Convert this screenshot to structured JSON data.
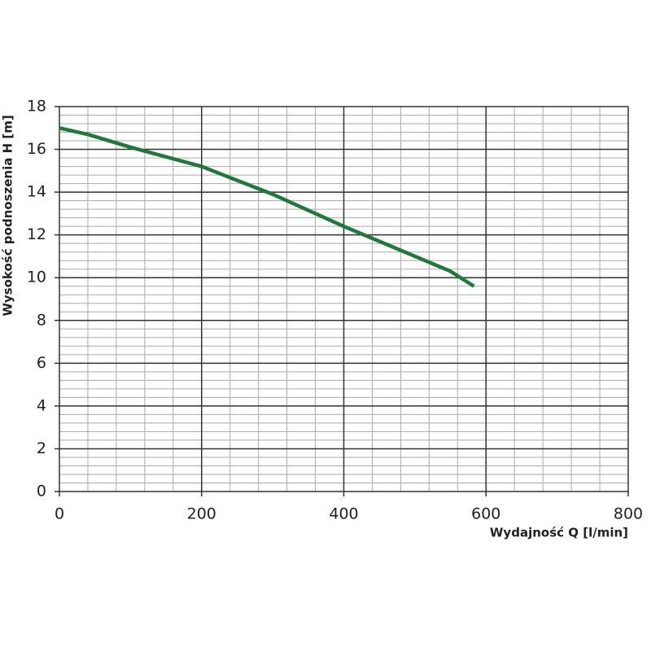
{
  "chart_data": {
    "type": "line",
    "x_label": "Wydajność Q [l/min]",
    "y_label": "Wysokość podnoszenia H [m]",
    "xlim": [
      0,
      800
    ],
    "xticks": [
      0,
      200,
      400,
      600,
      800
    ],
    "ylim": [
      0,
      18
    ],
    "yticks": [
      0,
      2,
      4,
      6,
      8,
      10,
      12,
      14,
      16,
      18
    ],
    "grid": true,
    "minor_grid": {
      "x": 40,
      "y": 0.4
    },
    "x": [
      0,
      40,
      100,
      150,
      200,
      250,
      300,
      350,
      400,
      450,
      500,
      550,
      583
    ],
    "series": [
      {
        "color": "#1e7a3a",
        "values": [
          17,
          16.7,
          16.1,
          15.65,
          15.2,
          14.55,
          13.9,
          13.15,
          12.4,
          11.7,
          11.0,
          10.3,
          9.6
        ]
      }
    ]
  }
}
